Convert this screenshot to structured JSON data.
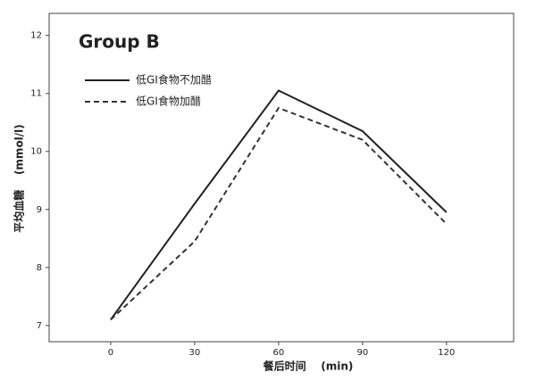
{
  "chart_data": {
    "type": "line",
    "title": "Group B",
    "x": [
      0,
      30,
      60,
      90,
      120
    ],
    "series": [
      {
        "name": "低GI食物不加醋",
        "color": "#222222",
        "dash": "solid",
        "values": [
          7.1,
          9.1,
          11.05,
          10.35,
          8.95
        ]
      },
      {
        "name": "低GI食物加醋",
        "color": "#333333",
        "dash": "dashed",
        "values": [
          7.1,
          8.45,
          10.75,
          10.2,
          8.75
        ]
      }
    ],
    "xlim": [
      -22,
      144
    ],
    "xticks": [
      0,
      30,
      60,
      90,
      120
    ],
    "ylim": [
      6.72,
      12.38
    ],
    "yticks": [
      7,
      8,
      9,
      10,
      11,
      12
    ],
    "xlabel": "餐后时间    (min)",
    "ylabel": "平均血糖    (mmol/l)",
    "legend": "upper left",
    "grid": false
  }
}
